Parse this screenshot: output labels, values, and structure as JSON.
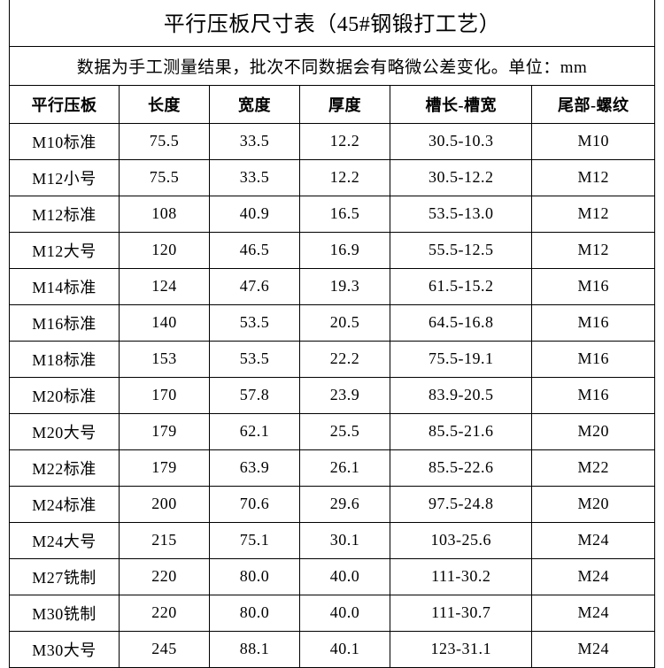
{
  "table": {
    "type": "table",
    "title": "平行压板尺寸表（45#钢锻打工艺）",
    "subtitle": "数据为手工测量结果，批次不同数据会有略微公差变化。单位：mm",
    "title_fontsize": 24,
    "subtitle_fontsize": 19,
    "header_fontsize": 18,
    "cell_fontsize": 18,
    "border_color": "#000000",
    "text_color": "#000000",
    "background_color": "#ffffff",
    "font_family": "SimSun",
    "column_widths_pct": [
      17,
      14,
      14,
      14,
      22,
      19
    ],
    "columns": [
      "平行压板",
      "长度",
      "宽度",
      "厚度",
      "槽长-槽宽",
      "尾部-螺纹"
    ],
    "rows": [
      [
        "M10标准",
        "75.5",
        "33.5",
        "12.2",
        "30.5-10.3",
        "M10"
      ],
      [
        "M12小号",
        "75.5",
        "33.5",
        "12.2",
        "30.5-12.2",
        "M12"
      ],
      [
        "M12标准",
        "108",
        "40.9",
        "16.5",
        "53.5-13.0",
        "M12"
      ],
      [
        "M12大号",
        "120",
        "46.5",
        "16.9",
        "55.5-12.5",
        "M12"
      ],
      [
        "M14标准",
        "124",
        "47.6",
        "19.3",
        "61.5-15.2",
        "M16"
      ],
      [
        "M16标准",
        "140",
        "53.5",
        "20.5",
        "64.5-16.8",
        "M16"
      ],
      [
        "M18标准",
        "153",
        "53.5",
        "22.2",
        "75.5-19.1",
        "M16"
      ],
      [
        "M20标准",
        "170",
        "57.8",
        "23.9",
        "83.9-20.5",
        "M16"
      ],
      [
        "M20大号",
        "179",
        "62.1",
        "25.5",
        "85.5-21.6",
        "M20"
      ],
      [
        "M22标准",
        "179",
        "63.9",
        "26.1",
        "85.5-22.6",
        "M22"
      ],
      [
        "M24标准",
        "200",
        "70.6",
        "29.6",
        "97.5-24.8",
        "M20"
      ],
      [
        "M24大号",
        "215",
        "75.1",
        "30.1",
        "103-25.6",
        "M24"
      ],
      [
        "M27铣制",
        "220",
        "80.0",
        "40.0",
        "111-30.2",
        "M24"
      ],
      [
        "M30铣制",
        "220",
        "80.0",
        "40.0",
        "111-30.7",
        "M24"
      ],
      [
        "M30大号",
        "245",
        "88.1",
        "40.1",
        "123-31.1",
        "M24"
      ]
    ]
  }
}
